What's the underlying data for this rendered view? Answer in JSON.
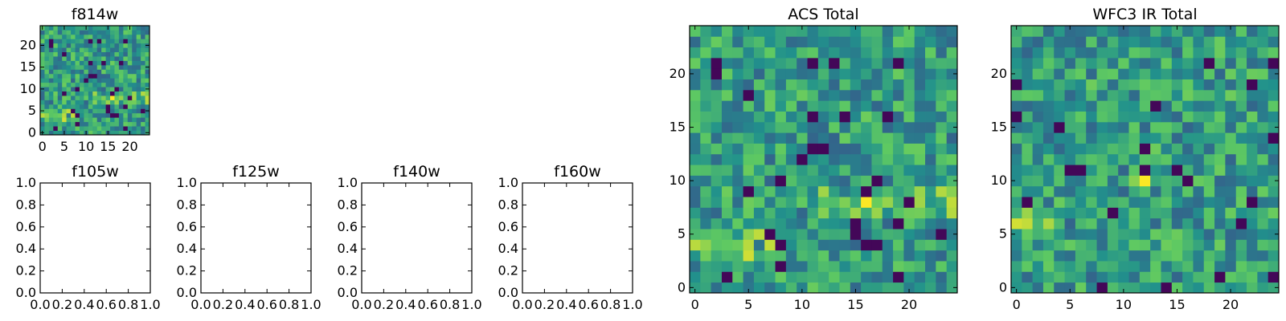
{
  "chart_data": [
    {
      "type": "heatmap",
      "title": "f814w",
      "xlim": [
        -0.5,
        24.5
      ],
      "ylim": [
        -0.5,
        24.5
      ],
      "xticks": [
        0,
        5,
        10,
        15,
        20
      ],
      "yticks": [
        0,
        5,
        10,
        15,
        20
      ],
      "grid": false,
      "colormap": "viridis",
      "note_values": "seeded pseudo-random 25x25 field, brightest rows near y=3-5"
    },
    {
      "type": "heatmap",
      "title": "f105w",
      "empty": true,
      "xlim": [
        0,
        1
      ],
      "ylim": [
        0,
        1
      ],
      "xticks": [
        "0.0",
        "0.2",
        "0.4",
        "0.6",
        "0.8",
        "1.0"
      ],
      "yticks": [
        "0.0",
        "0.2",
        "0.4",
        "0.6",
        "0.8",
        "1.0"
      ]
    },
    {
      "type": "heatmap",
      "title": "f125w",
      "empty": true,
      "xlim": [
        0,
        1
      ],
      "ylim": [
        0,
        1
      ],
      "xticks": [
        "0.0",
        "0.2",
        "0.4",
        "0.6",
        "0.8",
        "1.0"
      ],
      "yticks": [
        "0.0",
        "0.2",
        "0.4",
        "0.6",
        "0.8",
        "1.0"
      ]
    },
    {
      "type": "heatmap",
      "title": "f140w",
      "empty": true,
      "xlim": [
        0,
        1
      ],
      "ylim": [
        0,
        1
      ],
      "xticks": [
        "0.0",
        "0.2",
        "0.4",
        "0.6",
        "0.8",
        "1.0"
      ],
      "yticks": [
        "0.0",
        "0.2",
        "0.4",
        "0.6",
        "0.8",
        "1.0"
      ]
    },
    {
      "type": "heatmap",
      "title": "f160w",
      "empty": true,
      "xlim": [
        0,
        1
      ],
      "ylim": [
        0,
        1
      ],
      "xticks": [
        "0.0",
        "0.2",
        "0.4",
        "0.6",
        "0.8",
        "1.0"
      ],
      "yticks": [
        "0.0",
        "0.2",
        "0.4",
        "0.6",
        "0.8",
        "1.0"
      ]
    },
    {
      "type": "heatmap",
      "title": "ACS Total",
      "xlim": [
        -0.5,
        24.5
      ],
      "ylim": [
        -0.5,
        24.5
      ],
      "xticks": [
        0,
        5,
        10,
        15,
        20
      ],
      "yticks": [
        0,
        5,
        10,
        15,
        20
      ],
      "grid": false,
      "colormap": "viridis"
    },
    {
      "type": "heatmap",
      "title": "WFC3 IR Total",
      "xlim": [
        -0.5,
        24.5
      ],
      "ylim": [
        -0.5,
        24.5
      ],
      "xticks": [
        0,
        5,
        10,
        15,
        20
      ],
      "yticks": [
        0,
        5,
        10,
        15,
        20
      ],
      "grid": false,
      "colormap": "viridis"
    }
  ],
  "colors": {
    "viridis_dark": "#440154",
    "viridis_blue": "#31688e",
    "viridis_teal": "#21918c",
    "viridis_green": "#5ec962",
    "viridis_yellow": "#fde725"
  }
}
